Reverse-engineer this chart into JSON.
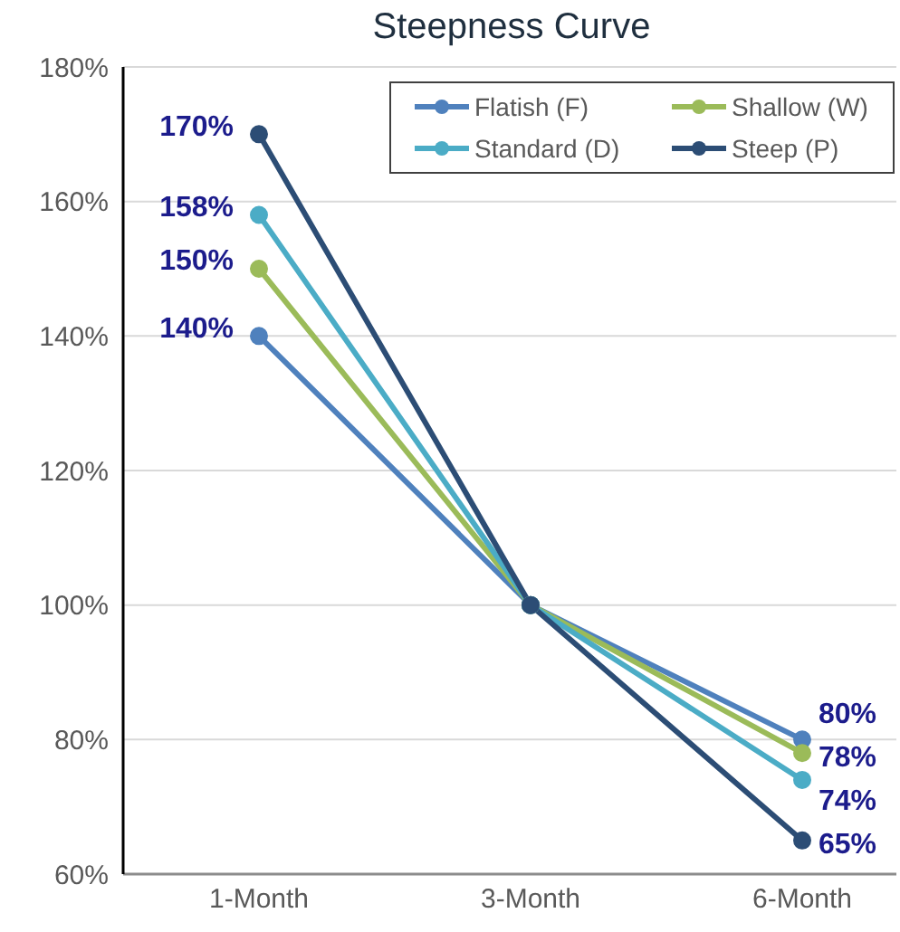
{
  "chart_data": {
    "type": "line",
    "title": "Steepness Curve",
    "categories": [
      "1-Month",
      "3-Month",
      "6-Month"
    ],
    "series": [
      {
        "name": "Flatish (F)",
        "color": "#4f81bd",
        "values": [
          140,
          100,
          80
        ],
        "value_labels": [
          "140%",
          null,
          "80%"
        ]
      },
      {
        "name": "Shallow (W)",
        "color": "#9bbb59",
        "values": [
          150,
          100,
          78
        ],
        "value_labels": [
          "150%",
          null,
          "78%"
        ]
      },
      {
        "name": "Standard (D)",
        "color": "#4bacc6",
        "values": [
          158,
          100,
          74
        ],
        "value_labels": [
          "158%",
          null,
          "74%"
        ]
      },
      {
        "name": "Steep (P)",
        "color": "#2c4d75",
        "values": [
          170,
          100,
          65
        ],
        "value_labels": [
          "170%",
          null,
          "65%"
        ]
      }
    ],
    "ylim": [
      60,
      180
    ],
    "yticks": [
      {
        "value": 60,
        "label": "60%"
      },
      {
        "value": 80,
        "label": "80%"
      },
      {
        "value": 100,
        "label": "100%"
      },
      {
        "value": 120,
        "label": "120%"
      },
      {
        "value": 140,
        "label": "140%"
      },
      {
        "value": 160,
        "label": "160%"
      },
      {
        "value": 180,
        "label": "180%"
      }
    ],
    "grid": "y",
    "legend": "top right",
    "marker": "circle",
    "line_style": "solid"
  }
}
